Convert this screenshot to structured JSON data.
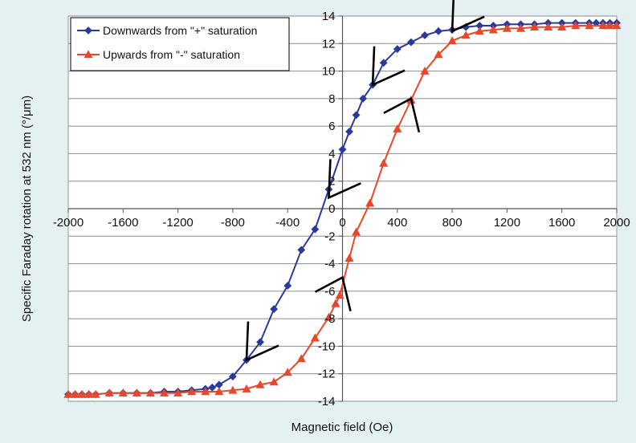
{
  "chart_data": {
    "type": "line",
    "title": "",
    "xlabel": "Magnetic field (Oe)",
    "ylabel": "Specific Faraday rotation at 532 nm (°/μm)",
    "xlim": [
      -2000,
      2000
    ],
    "ylim": [
      -14,
      14
    ],
    "x_ticks": [
      -2000,
      -1600,
      -1200,
      -800,
      -400,
      0,
      400,
      800,
      1200,
      1600,
      2000
    ],
    "x_tick_labels": [
      "-2000",
      "-1600",
      "-1200",
      "-800",
      "-400",
      "0",
      "400",
      "800",
      "1200",
      "1600",
      "2000"
    ],
    "y_ticks": [
      -14,
      -12,
      -10,
      -8,
      -6,
      -4,
      -2,
      0,
      2,
      4,
      6,
      8,
      10,
      12,
      14
    ],
    "y_tick_labels": [
      "-14",
      "-12",
      "-10",
      "-8",
      "-6",
      "-4",
      "-2",
      "0",
      "2",
      "4",
      "6",
      "8",
      "10",
      "12",
      "14"
    ],
    "grid": "horizontal",
    "legend_position": "top-left",
    "series": [
      {
        "name": "Downwards from \"+\" saturation",
        "color": "#2b3a9a",
        "marker": "diamond",
        "points": [
          [
            2000,
            13.5
          ],
          [
            1950,
            13.5
          ],
          [
            1900,
            13.5
          ],
          [
            1850,
            13.5
          ],
          [
            1800,
            13.5
          ],
          [
            1700,
            13.5
          ],
          [
            1600,
            13.5
          ],
          [
            1500,
            13.5
          ],
          [
            1400,
            13.4
          ],
          [
            1300,
            13.4
          ],
          [
            1200,
            13.4
          ],
          [
            1100,
            13.3
          ],
          [
            1000,
            13.3
          ],
          [
            900,
            13.2
          ],
          [
            800,
            13.0
          ],
          [
            700,
            12.9
          ],
          [
            600,
            12.6
          ],
          [
            500,
            12.1
          ],
          [
            400,
            11.6
          ],
          [
            300,
            10.6
          ],
          [
            220,
            9.0
          ],
          [
            150,
            8.0
          ],
          [
            100,
            6.8
          ],
          [
            50,
            5.6
          ],
          [
            0,
            4.3
          ],
          [
            -100,
            1.4
          ],
          [
            -200,
            -1.5
          ],
          [
            -300,
            -3.0
          ],
          [
            -400,
            -5.6
          ],
          [
            -500,
            -7.3
          ],
          [
            -600,
            -9.7
          ],
          [
            -700,
            -11.0
          ],
          [
            -800,
            -12.2
          ],
          [
            -900,
            -12.8
          ],
          [
            -950,
            -13.0
          ],
          [
            -1000,
            -13.1
          ],
          [
            -1100,
            -13.2
          ],
          [
            -1200,
            -13.3
          ],
          [
            -1300,
            -13.3
          ],
          [
            -1400,
            -13.4
          ],
          [
            -1500,
            -13.4
          ],
          [
            -1600,
            -13.4
          ],
          [
            -1700,
            -13.4
          ],
          [
            -1800,
            -13.5
          ],
          [
            -1850,
            -13.5
          ],
          [
            -1900,
            -13.5
          ],
          [
            -1950,
            -13.5
          ],
          [
            -2000,
            -13.5
          ]
        ]
      },
      {
        "name": "Upwards from \"-\" saturation",
        "color": "#e8472a",
        "marker": "triangle",
        "points": [
          [
            -2000,
            -13.5
          ],
          [
            -1950,
            -13.5
          ],
          [
            -1900,
            -13.5
          ],
          [
            -1850,
            -13.5
          ],
          [
            -1800,
            -13.5
          ],
          [
            -1700,
            -13.4
          ],
          [
            -1600,
            -13.4
          ],
          [
            -1500,
            -13.4
          ],
          [
            -1400,
            -13.4
          ],
          [
            -1300,
            -13.4
          ],
          [
            -1200,
            -13.4
          ],
          [
            -1100,
            -13.3
          ],
          [
            -1000,
            -13.3
          ],
          [
            -900,
            -13.3
          ],
          [
            -800,
            -13.2
          ],
          [
            -700,
            -13.1
          ],
          [
            -600,
            -12.8
          ],
          [
            -500,
            -12.6
          ],
          [
            -400,
            -11.9
          ],
          [
            -300,
            -10.9
          ],
          [
            -200,
            -9.4
          ],
          [
            -100,
            -7.9
          ],
          [
            -50,
            -6.9
          ],
          [
            -20,
            -6.3
          ],
          [
            50,
            -3.6
          ],
          [
            100,
            -1.7
          ],
          [
            200,
            0.4
          ],
          [
            300,
            3.3
          ],
          [
            400,
            5.8
          ],
          [
            500,
            7.9
          ],
          [
            600,
            10.0
          ],
          [
            700,
            11.2
          ],
          [
            800,
            12.2
          ],
          [
            900,
            12.6
          ],
          [
            1000,
            12.9
          ],
          [
            1100,
            13.0
          ],
          [
            1200,
            13.1
          ],
          [
            1300,
            13.1
          ],
          [
            1400,
            13.2
          ],
          [
            1500,
            13.2
          ],
          [
            1600,
            13.2
          ],
          [
            1700,
            13.3
          ],
          [
            1800,
            13.3
          ],
          [
            1900,
            13.3
          ],
          [
            1950,
            13.3
          ],
          [
            2000,
            13.3
          ]
        ]
      }
    ],
    "annotations": [
      {
        "type": "direction-arrow",
        "series": 0,
        "tip": [
          800,
          12.9
        ],
        "head": "down-left"
      },
      {
        "type": "direction-arrow",
        "series": 0,
        "tip": [
          220,
          9.0
        ],
        "head": "down-left"
      },
      {
        "type": "direction-arrow",
        "series": 0,
        "tip": [
          -100,
          0.8
        ],
        "head": "down-left"
      },
      {
        "type": "direction-arrow",
        "series": 0,
        "tip": [
          -700,
          -11.0
        ],
        "head": "down-left"
      },
      {
        "type": "direction-arrow",
        "series": 1,
        "tip": [
          0,
          -5.0
        ],
        "head": "up-right"
      },
      {
        "type": "direction-arrow",
        "series": 1,
        "tip": [
          500,
          8.0
        ],
        "head": "up-right"
      }
    ]
  }
}
